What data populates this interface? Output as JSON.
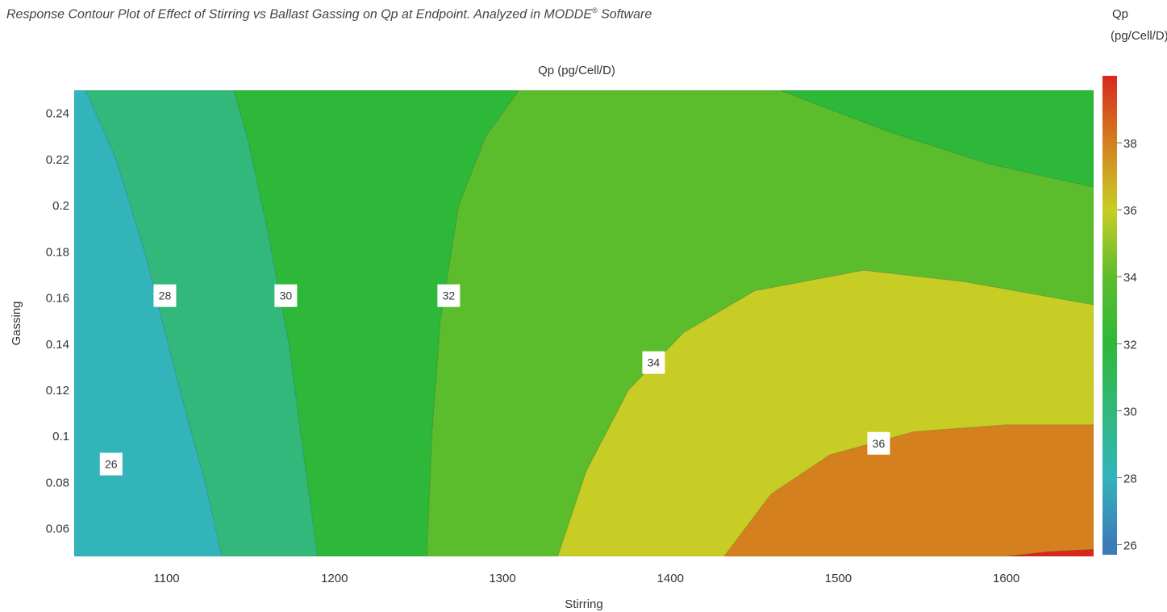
{
  "caption": {
    "text": "Response Contour Plot of Effect of Stirring vs Ballast Gassing on Qp at Endpoint. Analyzed in MODDE",
    "registered_mark": "®",
    "suffix": " Software"
  },
  "chart_data": {
    "type": "contour",
    "title": "Qp (pg/Cell/D)",
    "xlabel": "Stirring",
    "ylabel": "Gassing",
    "xlim": [
      1045,
      1652
    ],
    "ylim": [
      0.048,
      0.25
    ],
    "xticks": [
      1100,
      1200,
      1300,
      1400,
      1500,
      1600
    ],
    "yticks": [
      0.06,
      0.08,
      0.1,
      0.12,
      0.14,
      0.16,
      0.18,
      0.2,
      0.22,
      0.24
    ],
    "colorbar": {
      "title_line1": "Qp",
      "title_line2": "(pg/Cell/D)",
      "range": [
        25.7,
        40
      ],
      "ticks": [
        26,
        28,
        30,
        32,
        34,
        36,
        38
      ]
    },
    "levels": [
      {
        "value": 26,
        "color": "#3d7ab8"
      },
      {
        "value": 28,
        "color": "#33b4bb"
      },
      {
        "value": 30,
        "color": "#32b87a"
      },
      {
        "value": 32,
        "color": "#2db83a"
      },
      {
        "value": 34,
        "color": "#5cbd2c"
      },
      {
        "value": 36,
        "color": "#c8cd26"
      },
      {
        "value": 38,
        "color": "#d4801f"
      },
      {
        "value": 40,
        "color": "#d8281e"
      }
    ],
    "regions": [
      {
        "level": 26,
        "points": [
          [
            1045,
            0.048
          ],
          [
            1083,
            0.048
          ],
          [
            1077,
            0.06
          ],
          [
            1067,
            0.08
          ],
          [
            1057,
            0.1
          ],
          [
            1051,
            0.115
          ],
          [
            1045,
            0.135
          ]
        ]
      },
      {
        "level": 28,
        "points": [
          [
            1045,
            0.25
          ],
          [
            1045,
            0.048
          ],
          [
            1133,
            0.048
          ],
          [
            1123,
            0.08
          ],
          [
            1108,
            0.12
          ],
          [
            1087,
            0.18
          ],
          [
            1070,
            0.22
          ],
          [
            1052,
            0.25
          ]
        ]
      },
      {
        "level": 30,
        "points": [
          [
            1052,
            0.25
          ],
          [
            1070,
            0.22
          ],
          [
            1087,
            0.18
          ],
          [
            1108,
            0.12
          ],
          [
            1123,
            0.08
          ],
          [
            1133,
            0.048
          ],
          [
            1190,
            0.048
          ],
          [
            1182,
            0.09
          ],
          [
            1173,
            0.14
          ],
          [
            1160,
            0.19
          ],
          [
            1148,
            0.23
          ],
          [
            1140,
            0.25
          ]
        ]
      },
      {
        "level": 32,
        "points": [
          [
            1140,
            0.25
          ],
          [
            1148,
            0.23
          ],
          [
            1160,
            0.19
          ],
          [
            1173,
            0.14
          ],
          [
            1182,
            0.09
          ],
          [
            1190,
            0.048
          ],
          [
            1255,
            0.048
          ],
          [
            1258,
            0.1
          ],
          [
            1263,
            0.15
          ],
          [
            1274,
            0.2
          ],
          [
            1290,
            0.23
          ],
          [
            1310,
            0.25
          ]
        ]
      },
      {
        "level": 32,
        "points": [
          [
            1465,
            0.25
          ],
          [
            1530,
            0.232
          ],
          [
            1590,
            0.218
          ],
          [
            1652,
            0.208
          ],
          [
            1652,
            0.25
          ]
        ]
      },
      {
        "level": 34,
        "points": [
          [
            1310,
            0.25
          ],
          [
            1290,
            0.23
          ],
          [
            1274,
            0.2
          ],
          [
            1263,
            0.15
          ],
          [
            1258,
            0.1
          ],
          [
            1255,
            0.048
          ],
          [
            1333,
            0.048
          ],
          [
            1350,
            0.085
          ],
          [
            1375,
            0.12
          ],
          [
            1408,
            0.145
          ],
          [
            1450,
            0.163
          ],
          [
            1515,
            0.172
          ],
          [
            1575,
            0.167
          ],
          [
            1652,
            0.157
          ],
          [
            1652,
            0.208
          ],
          [
            1590,
            0.218
          ],
          [
            1530,
            0.232
          ],
          [
            1465,
            0.25
          ]
        ]
      },
      {
        "level": 36,
        "points": [
          [
            1333,
            0.048
          ],
          [
            1350,
            0.085
          ],
          [
            1375,
            0.12
          ],
          [
            1408,
            0.145
          ],
          [
            1450,
            0.163
          ],
          [
            1515,
            0.172
          ],
          [
            1575,
            0.167
          ],
          [
            1652,
            0.157
          ],
          [
            1652,
            0.105
          ],
          [
            1600,
            0.105
          ],
          [
            1545,
            0.102
          ],
          [
            1495,
            0.092
          ],
          [
            1460,
            0.075
          ],
          [
            1432,
            0.048
          ]
        ]
      },
      {
        "level": 38,
        "points": [
          [
            1432,
            0.048
          ],
          [
            1460,
            0.075
          ],
          [
            1495,
            0.092
          ],
          [
            1545,
            0.102
          ],
          [
            1600,
            0.105
          ],
          [
            1652,
            0.105
          ],
          [
            1652,
            0.051
          ],
          [
            1625,
            0.05
          ],
          [
            1600,
            0.048
          ]
        ]
      },
      {
        "level": 40,
        "points": [
          [
            1600,
            0.048
          ],
          [
            1625,
            0.05
          ],
          [
            1652,
            0.051
          ],
          [
            1652,
            0.048
          ]
        ]
      }
    ],
    "contour_labels": [
      {
        "text": "26",
        "x": 1067,
        "y": 0.088
      },
      {
        "text": "28",
        "x": 1099,
        "y": 0.161
      },
      {
        "text": "30",
        "x": 1171,
        "y": 0.161
      },
      {
        "text": "32",
        "x": 1268,
        "y": 0.161
      },
      {
        "text": "34",
        "x": 1390,
        "y": 0.132
      },
      {
        "text": "36",
        "x": 1524,
        "y": 0.097
      }
    ]
  }
}
